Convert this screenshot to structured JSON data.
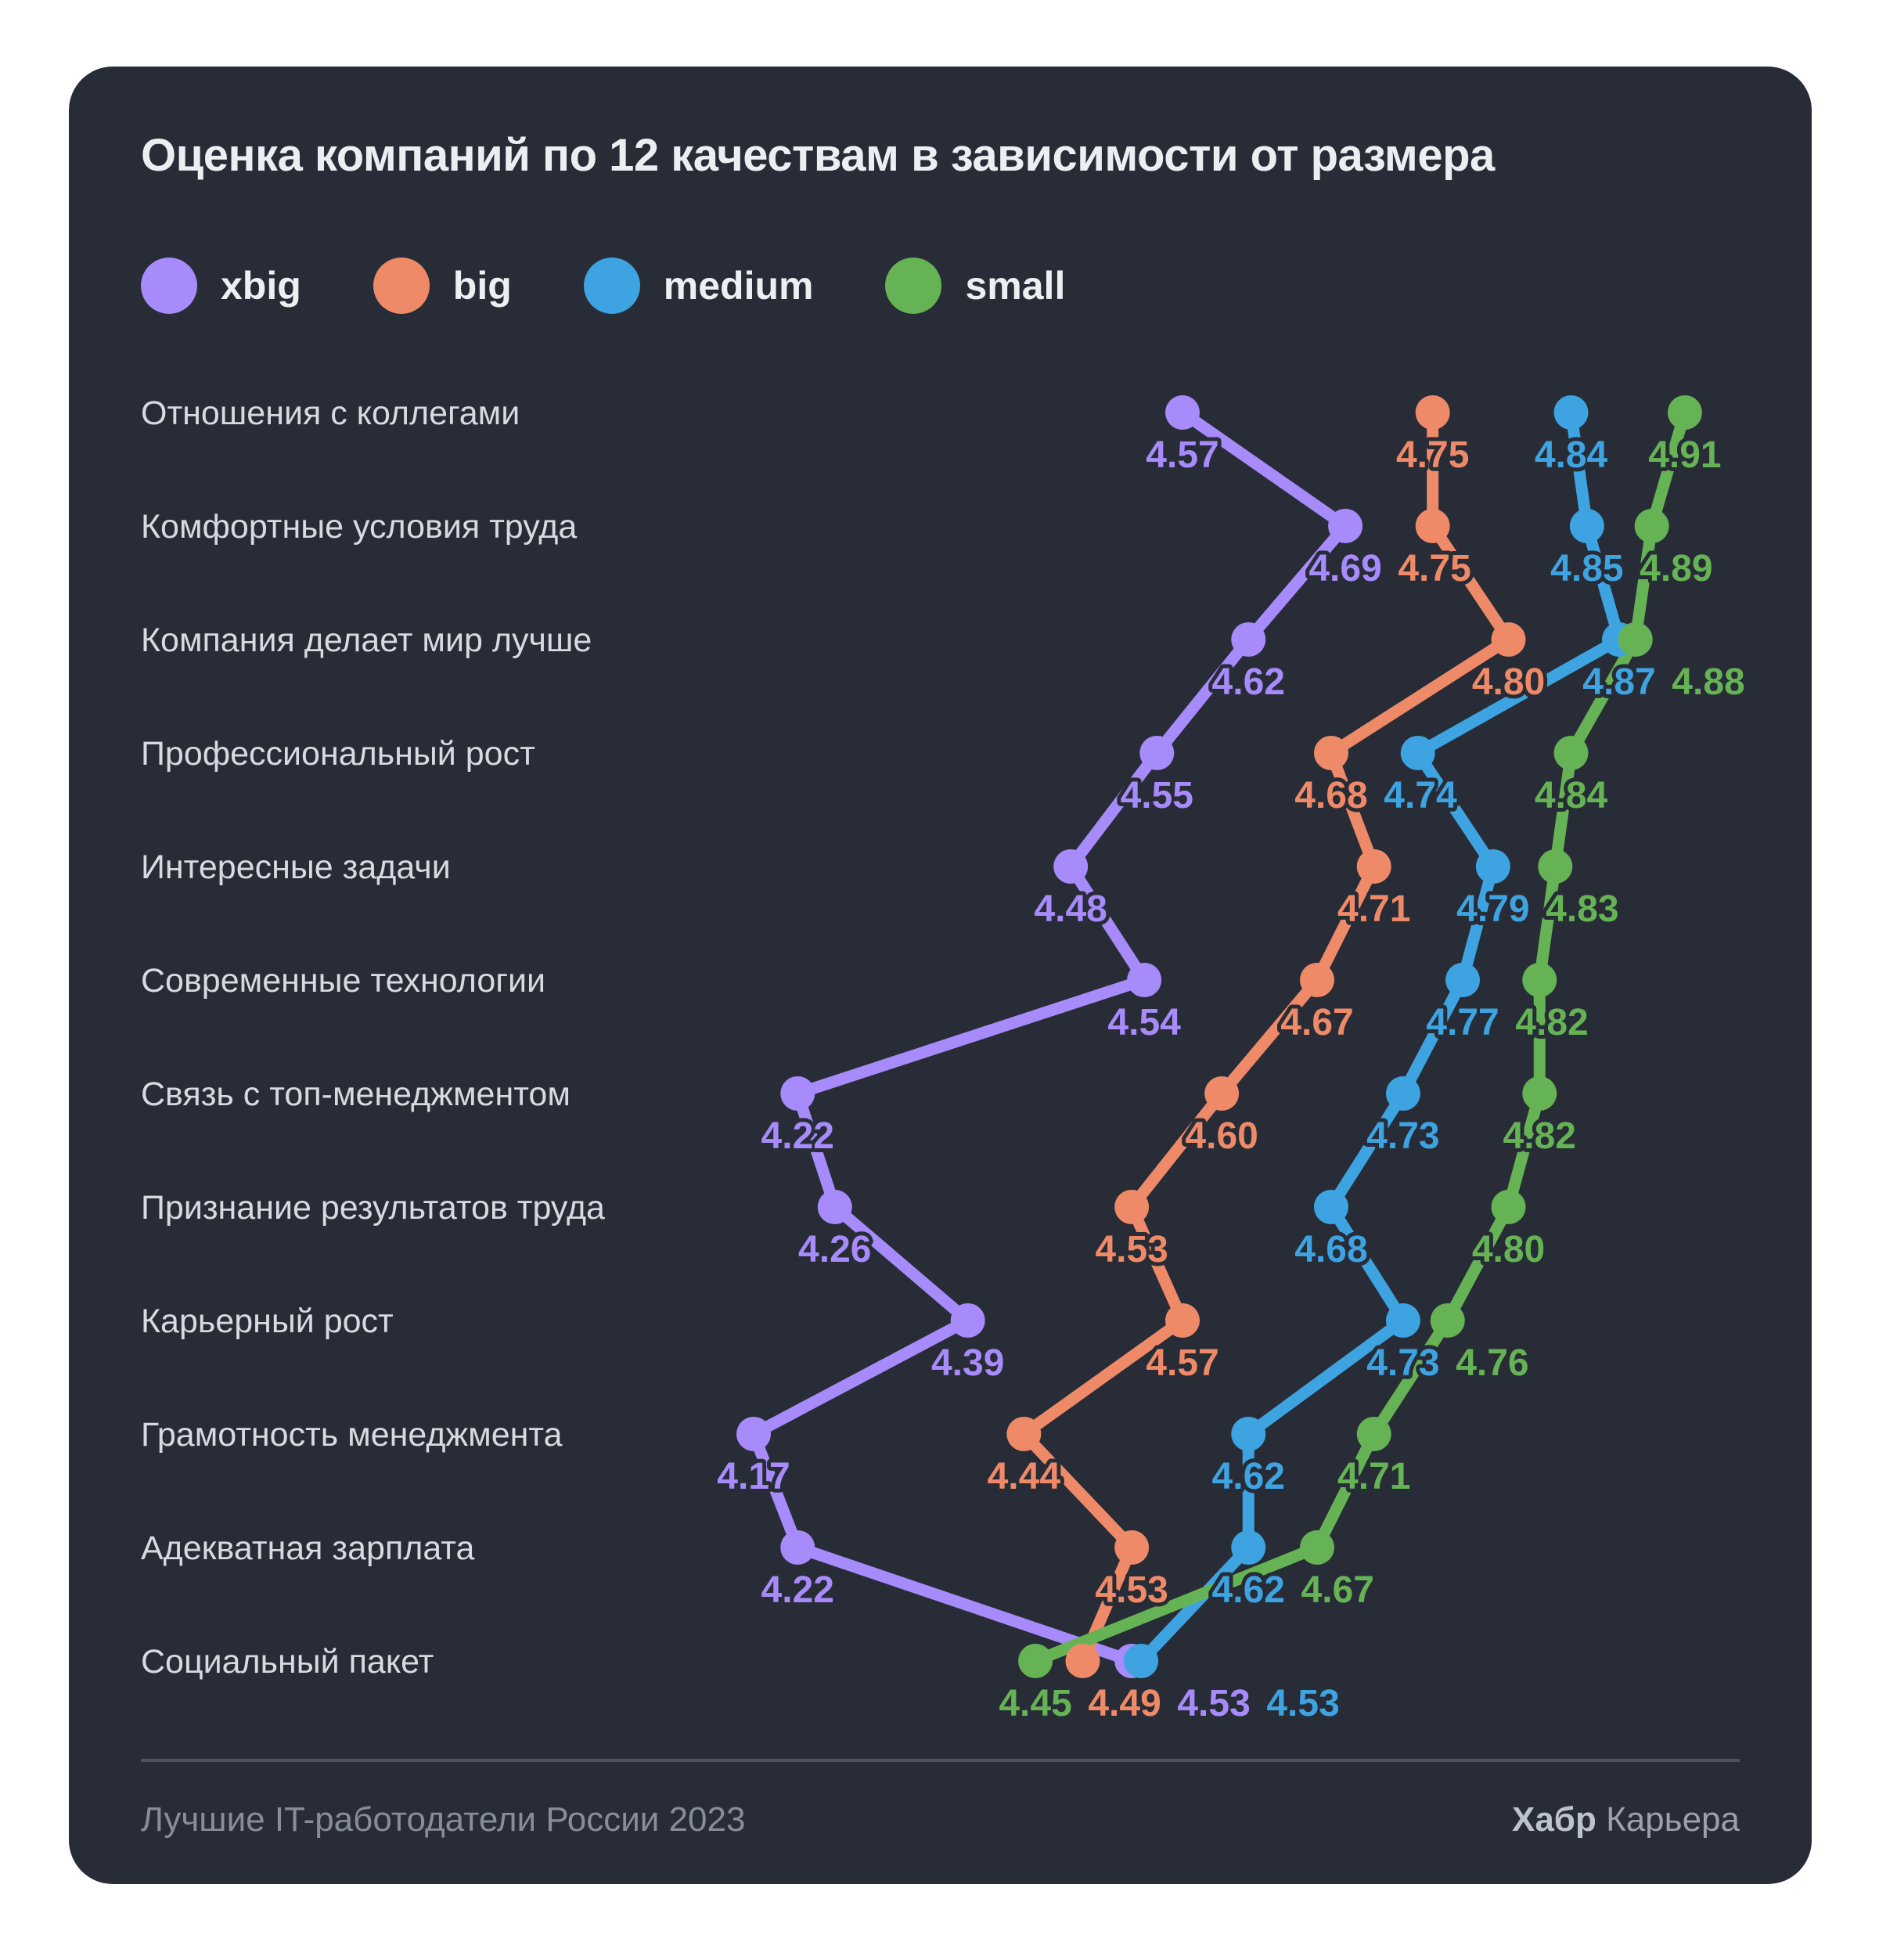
{
  "title": "Оценка компаний по 12 качествам в зависимости от размера",
  "colors": {
    "card_background": "#272c37",
    "page_background": "#ffffff",
    "title_text": "#eceef2",
    "category_text": "#d7dbe1",
    "divider": "#4e545e",
    "footer_text": "#878e99"
  },
  "legend": [
    {
      "label": "xbig",
      "color": "#a78bfa"
    },
    {
      "label": "big",
      "color": "#ef8a68"
    },
    {
      "label": "medium",
      "color": "#3ea3e1"
    },
    {
      "label": "small",
      "color": "#65b354"
    }
  ],
  "chart_data": {
    "type": "line",
    "subtype": "dot-slope-chart-horizontal-value-axis",
    "value_axis": "horizontal",
    "xlim": [
      4.17,
      4.91
    ],
    "grid": false,
    "legend_position": "top-left",
    "value_format": "2-decimals",
    "categories": [
      "Отношения с коллегами",
      "Комфортные условия труда",
      "Компания делает мир лучше",
      "Профессиональный рост",
      "Интересные задачи",
      "Современные технологии",
      "Связь с топ-менеджментом",
      "Признание результатов труда",
      "Карьерный рост",
      "Грамотность менеджмента",
      "Адекватная зарплата",
      "Социальный пакет"
    ],
    "series": [
      {
        "name": "xbig",
        "color": "#a78bfa",
        "values": [
          4.57,
          4.69,
          4.62,
          4.55,
          4.48,
          4.54,
          4.22,
          4.26,
          4.39,
          4.17,
          4.22,
          4.53
        ]
      },
      {
        "name": "big",
        "color": "#ef8a68",
        "values": [
          4.75,
          4.75,
          4.8,
          4.68,
          4.71,
          4.67,
          4.6,
          4.53,
          4.57,
          4.44,
          4.53,
          4.49
        ]
      },
      {
        "name": "medium",
        "color": "#3ea3e1",
        "values": [
          4.84,
          4.85,
          4.87,
          4.74,
          4.79,
          4.77,
          4.73,
          4.68,
          4.73,
          4.62,
          4.62,
          4.53
        ]
      },
      {
        "name": "small",
        "color": "#65b354",
        "values": [
          4.91,
          4.89,
          4.88,
          4.84,
          4.83,
          4.82,
          4.82,
          4.8,
          4.76,
          4.71,
          4.67,
          4.45
        ]
      }
    ]
  },
  "footer": {
    "left": "Лучшие IT-работодатели России 2023",
    "brand_bold": "Хабр",
    "brand_rest": " Карьера"
  }
}
